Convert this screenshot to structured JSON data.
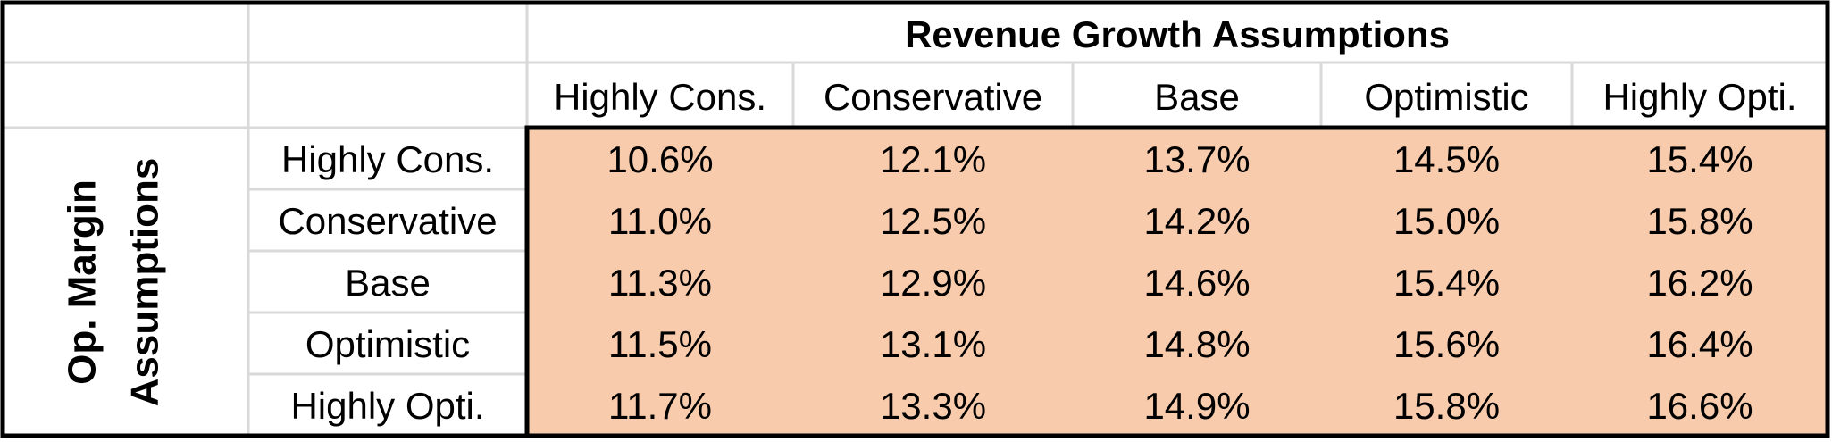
{
  "chart_data": {
    "type": "table",
    "title": "Revenue Growth Assumptions",
    "row_axis_title": "Op. Margin Assumptions",
    "row_axis_title_lines": [
      "Op. Margin",
      "Assumptions"
    ],
    "columns": [
      "Highly Cons.",
      "Conservative",
      "Base",
      "Optimistic",
      "Highly Opti."
    ],
    "rows": [
      {
        "label": "Highly Cons.",
        "values": [
          "10.6%",
          "12.1%",
          "13.7%",
          "14.5%",
          "15.4%"
        ]
      },
      {
        "label": "Conservative",
        "values": [
          "11.0%",
          "12.5%",
          "14.2%",
          "15.0%",
          "15.8%"
        ]
      },
      {
        "label": "Base",
        "values": [
          "11.3%",
          "12.9%",
          "14.6%",
          "15.4%",
          "16.2%"
        ]
      },
      {
        "label": "Optimistic",
        "values": [
          "11.5%",
          "13.1%",
          "14.8%",
          "15.6%",
          "16.4%"
        ]
      },
      {
        "label": "Highly Opti.",
        "values": [
          "11.7%",
          "13.3%",
          "14.9%",
          "15.8%",
          "16.6%"
        ]
      }
    ],
    "colors": {
      "cell_fill": "#f8cbad",
      "grid": "#d9d9d9",
      "border": "#000000",
      "text": "#000000"
    }
  }
}
